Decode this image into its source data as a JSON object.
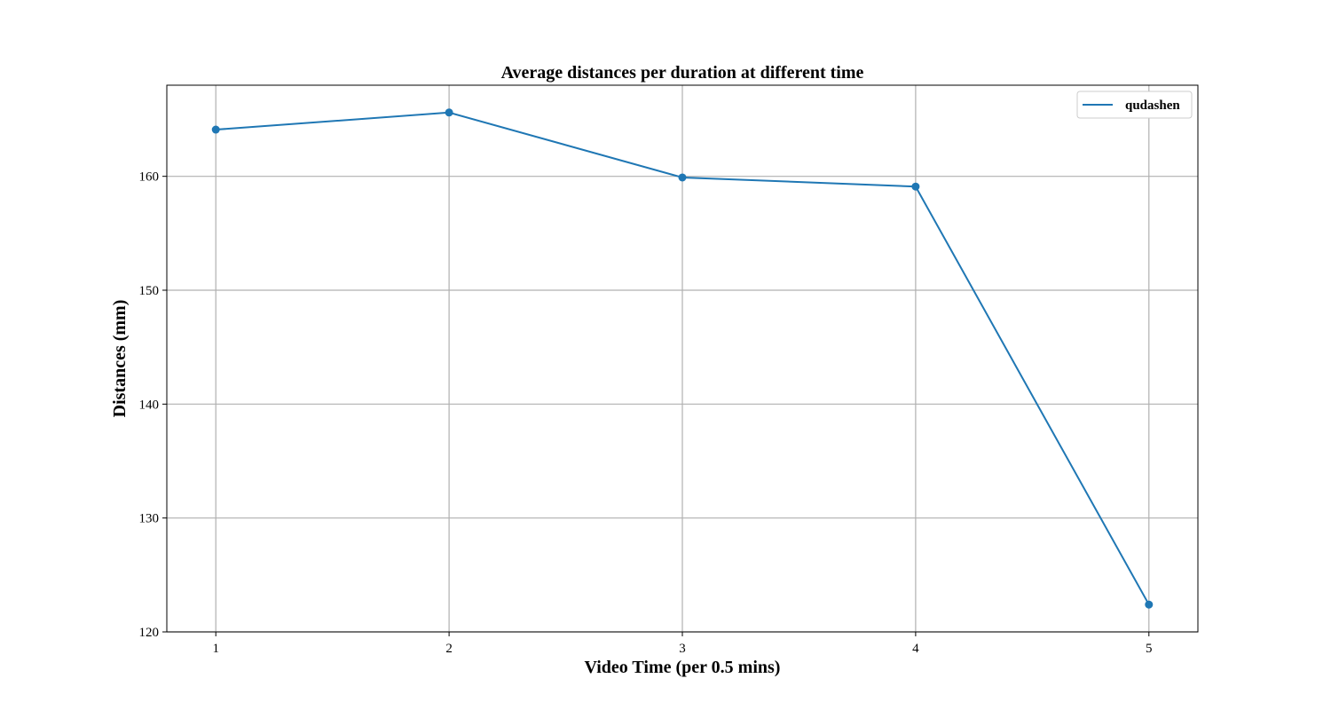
{
  "chart_data": {
    "type": "line",
    "title": "Average distances per duration at different time",
    "xlabel": "Video Time (per 0.5 mins)",
    "ylabel": "Distances (mm)",
    "x": [
      1,
      2,
      3,
      4,
      5
    ],
    "x_ticks": [
      "1",
      "2",
      "3",
      "4",
      "5"
    ],
    "y_ticks": [
      "120",
      "130",
      "140",
      "150",
      "160"
    ],
    "xlim": [
      0.79,
      5.21
    ],
    "ylim": [
      120,
      168
    ],
    "series": [
      {
        "name": "qudashen",
        "values": [
          164.1,
          165.6,
          159.9,
          159.1,
          122.4
        ],
        "color": "#1f77b4"
      }
    ],
    "grid": true,
    "legend_position": "top-right"
  }
}
